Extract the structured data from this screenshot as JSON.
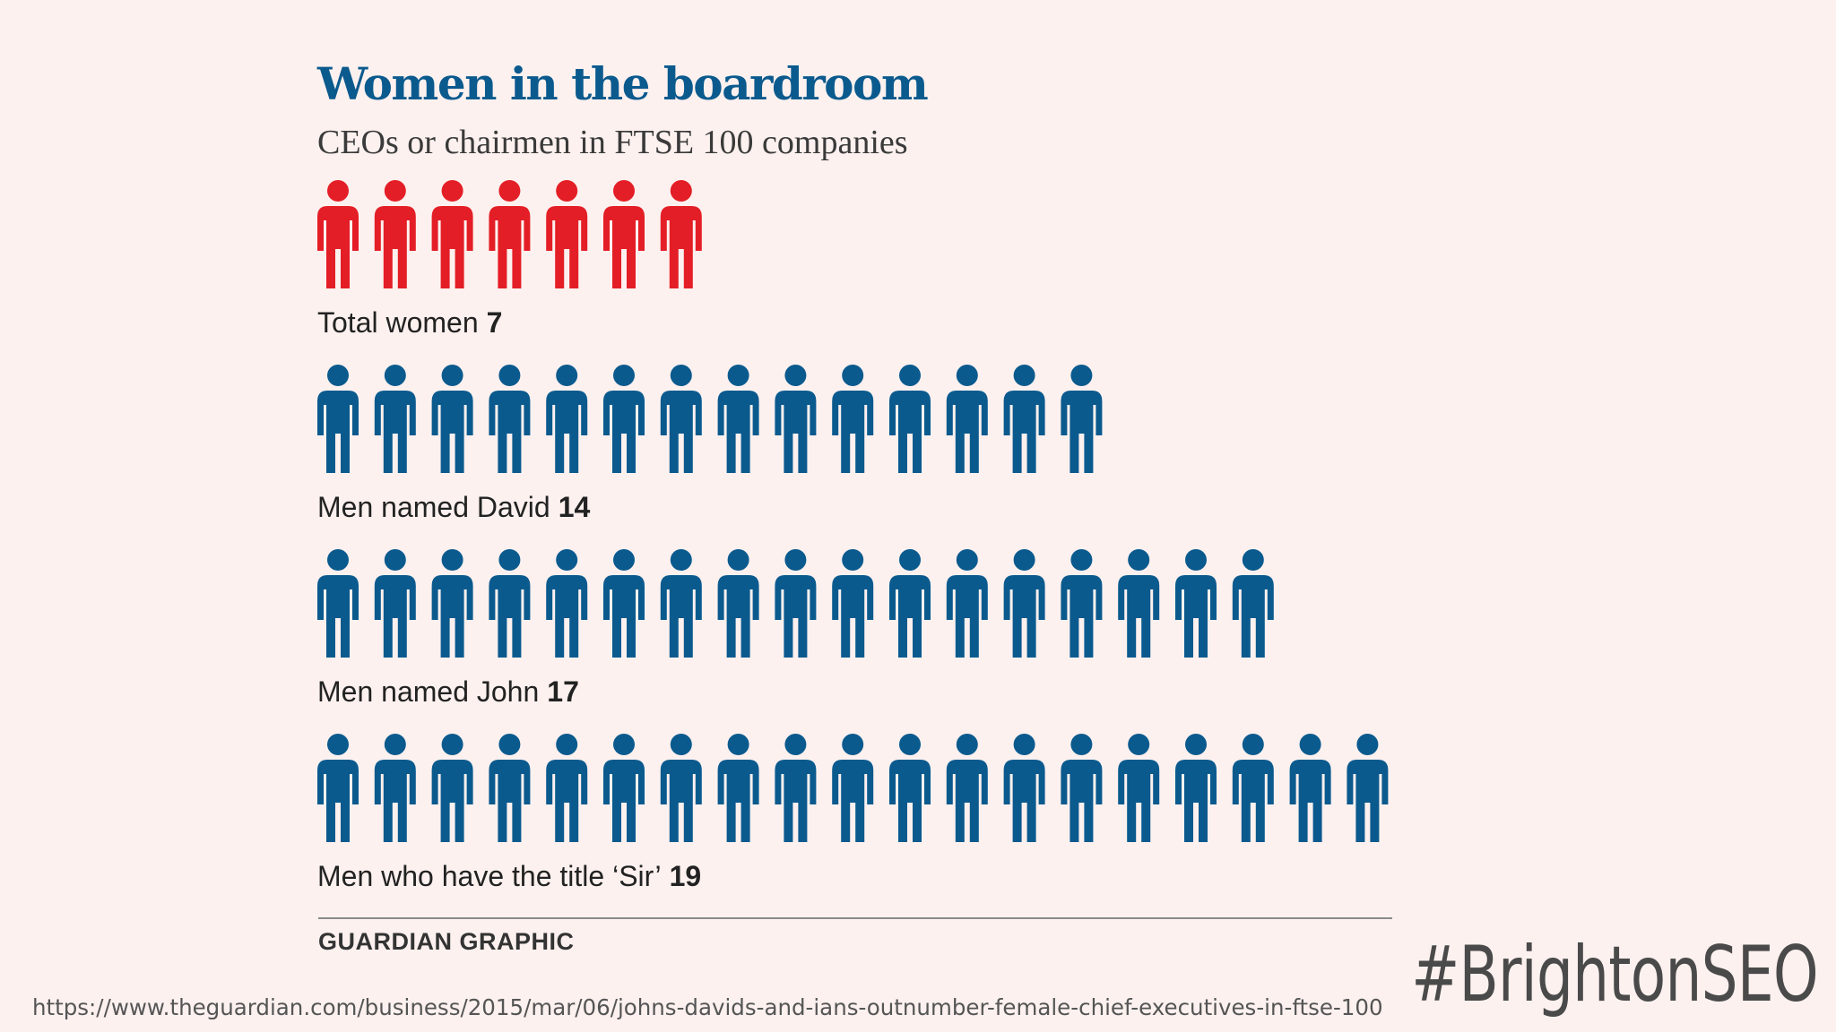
{
  "title": "Women in the boardroom",
  "subtitle": "CEOs or chairmen in FTSE 100 companies",
  "chart_data": {
    "type": "pictogram",
    "title": "Women in the boardroom",
    "subtitle": "CEOs or chairmen in FTSE 100 companies",
    "categories": [
      "Total women",
      "Men named David",
      "Men named John",
      "Men who have the title ‘Sir’"
    ],
    "values": [
      7,
      14,
      17,
      19
    ],
    "colors": [
      "#e41e26",
      "#0b5a8e",
      "#0b5a8e",
      "#0b5a8e"
    ],
    "icon": "person-icon"
  },
  "source": "GUARDIAN GRAPHIC",
  "url": "https://www.theguardian.com/business/2015/mar/06/johns-davids-and-ians-outnumber-female-chief-executives-in-ftse-100",
  "hashtag": "#BrightonSEO"
}
